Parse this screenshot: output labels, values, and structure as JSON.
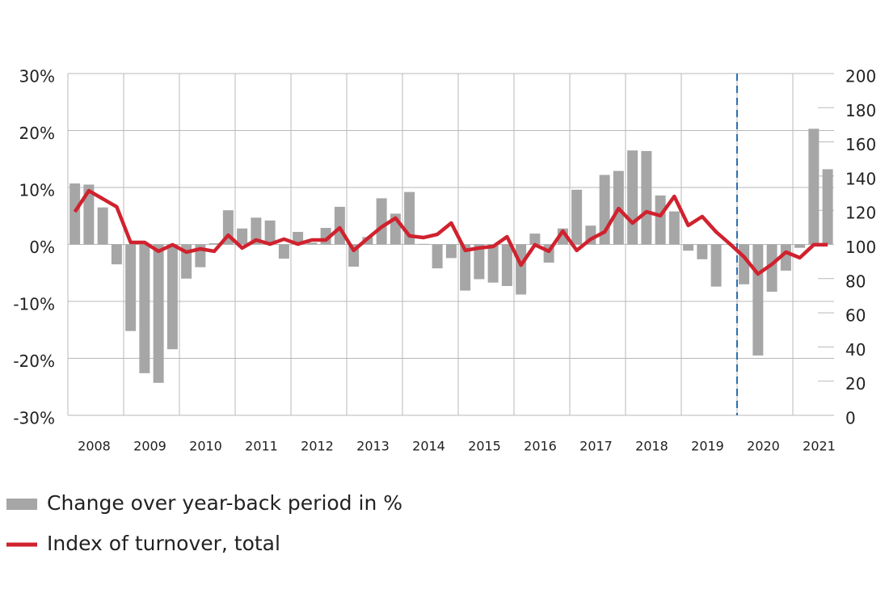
{
  "chart_data": {
    "type": "bar_line",
    "x_labels": [
      "2008",
      "2009",
      "2010",
      "2011",
      "2012",
      "2013",
      "2014",
      "2015",
      "2016",
      "2017",
      "2018",
      "2019",
      "2020",
      "2021"
    ],
    "series": [
      {
        "name": "Change over year-back period in %",
        "type": "bar",
        "color": "#a6a6a6",
        "values": [
          10.7,
          10.5,
          6.5,
          -3.5,
          -15.2,
          -22.6,
          -24.3,
          -18.4,
          -6.0,
          -4.0,
          0.2,
          6.0,
          2.8,
          4.7,
          4.2,
          -2.5,
          2.2,
          0.3,
          2.9,
          6.6,
          -3.9,
          1.3,
          8.1,
          5.4,
          9.2,
          0.1,
          -4.2,
          -2.4,
          -8.1,
          -6.1,
          -6.7,
          -7.3,
          -8.8,
          1.9,
          -3.2,
          2.8,
          9.6,
          3.3,
          12.2,
          12.9,
          16.5,
          16.4,
          8.6,
          5.8,
          -1.1,
          -2.6,
          -7.4,
          0,
          -7.0,
          -19.5,
          -8.3,
          -4.6,
          -0.6,
          20.3,
          13.2
        ]
      },
      {
        "name": "Index of turnover, total",
        "type": "line",
        "axis": "y2",
        "color": "#d0222e",
        "values": [
          119.1,
          131.4,
          126.7,
          122,
          101.2,
          101.2,
          96,
          99.8,
          95.5,
          97.4,
          96,
          105.4,
          97.9,
          102.6,
          100.2,
          103.1,
          100.2,
          102.6,
          102.6,
          109.7,
          96.5,
          103.5,
          110.2,
          115.4,
          105,
          104,
          105.9,
          112.5,
          96.5,
          97.9,
          98.8,
          104.5,
          87.9,
          99.8,
          96,
          107.8,
          96.5,
          103.1,
          107.3,
          121,
          112.5,
          119.1,
          116.8,
          128.1,
          111.1,
          116.3,
          107.3,
          100.2,
          92.7,
          82.7,
          88.4,
          95.5,
          92.2,
          99.8,
          99.8
        ]
      }
    ],
    "ylim": [
      -30,
      30
    ],
    "yticks": [
      {
        "value": -30,
        "label": "-30%"
      },
      {
        "value": -20,
        "label": "-20%"
      },
      {
        "value": -10,
        "label": "-10%"
      },
      {
        "value": 0,
        "label": "0%"
      },
      {
        "value": 10,
        "label": "10%"
      },
      {
        "value": 20,
        "label": "20%"
      },
      {
        "value": 30,
        "label": "30%"
      }
    ],
    "y2lim": [
      0,
      200
    ],
    "y2ticks": [
      0,
      20,
      40,
      60,
      80,
      100,
      120,
      140,
      160,
      180,
      200
    ],
    "grid": true
  }
}
